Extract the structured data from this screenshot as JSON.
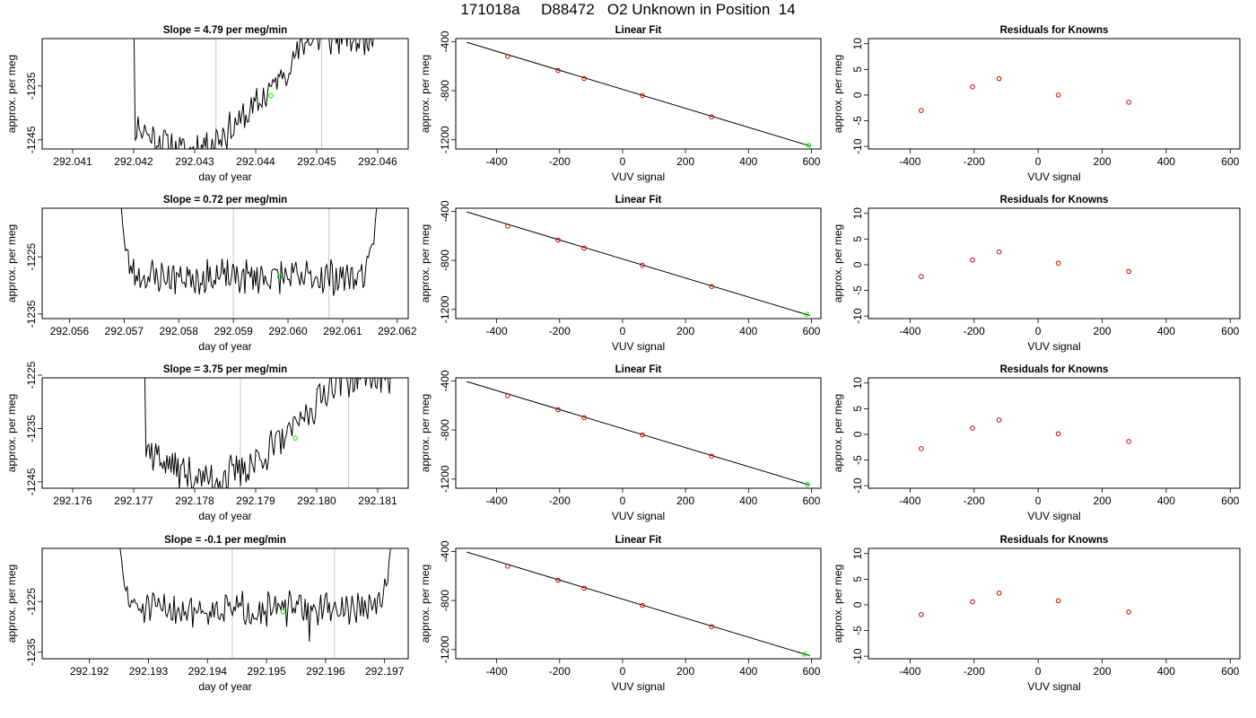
{
  "figure": {
    "title": "171018a     D88472   O2 Unknown in Position  14"
  },
  "chart_data": [
    {
      "type": "line",
      "row": 0,
      "title": "Slope =  4.79  per meg/min",
      "xlabel": "day of year",
      "ylabel": "approx. per meg",
      "xlim": [
        292.0405,
        292.0465
      ],
      "ylim": [
        -1246.7,
        -1226.2
      ],
      "xticks": [
        "292.041",
        "292.042",
        "292.043",
        "292.044",
        "292.045",
        "292.046"
      ],
      "xtick_values": [
        292.041,
        292.042,
        292.043,
        292.044,
        292.045,
        292.046
      ],
      "yticks": [
        "-1245",
        "-1235"
      ],
      "ytick_values": [
        -1245,
        -1235
      ],
      "vlines": [
        292.04335,
        292.04508
      ],
      "marker": {
        "x": 292.04425,
        "y": -1236.8,
        "color": "#00ee00"
      },
      "curve": {
        "x_start": 292.04185,
        "x_end": 292.04605,
        "y_start": -1226.2,
        "y_end": -1226.2,
        "y_min": -1246.7,
        "x_min": 292.04285,
        "noise": 1.8,
        "flat_end": 292.04595,
        "seed": 11
      },
      "line_color": "#000000"
    },
    {
      "type": "scatter+line",
      "row": 0,
      "title": "Linear Fit",
      "xlabel": "VUV signal",
      "ylabel": "approx. per meg",
      "xlim": [
        -530,
        630
      ],
      "ylim": [
        -1275,
        -375
      ],
      "xticks": [
        "-400",
        "-200",
        "0",
        "200",
        "400",
        "600"
      ],
      "xtick_values": [
        -400,
        -200,
        0,
        200,
        400,
        600
      ],
      "yticks": [
        "-400",
        "-800",
        "-1200"
      ],
      "ytick_values": [
        -400,
        -800,
        -1200
      ],
      "fit_line": {
        "x": [
          -495,
          595
        ],
        "y": [
          -405,
          -1250
        ]
      },
      "points": {
        "x": [
          -365,
          -205,
          -122,
          63,
          283
        ],
        "y": [
          -520,
          -635,
          -700,
          -840,
          -1013
        ],
        "color": "#cc0000"
      },
      "unknown_point": {
        "x": 591,
        "y": -1245,
        "color": "#00ee00"
      }
    },
    {
      "type": "scatter",
      "row": 0,
      "title": "Residuals for Knowns",
      "xlabel": "VUV signal",
      "ylabel": "approx. per meg",
      "xlim": [
        -530,
        630
      ],
      "ylim": [
        -10.5,
        11
      ],
      "xticks": [
        "-400",
        "-200",
        "0",
        "200",
        "400",
        "600"
      ],
      "xtick_values": [
        -400,
        -200,
        0,
        200,
        400,
        600
      ],
      "yticks": [
        "-10",
        "-5",
        "0",
        "5",
        "10"
      ],
      "ytick_values": [
        -10,
        -5,
        0,
        5,
        10
      ],
      "points": {
        "x": [
          -365,
          -205,
          -122,
          63,
          283
        ],
        "y": [
          -3.0,
          1.6,
          3.2,
          0.0,
          -1.4
        ],
        "color": "#cc0000"
      }
    },
    {
      "type": "line",
      "row": 1,
      "title": "Slope =  0.72  per meg/min",
      "xlabel": "day of year",
      "ylabel": "approx. per meg",
      "xlim": [
        292.0555,
        292.0622
      ],
      "ylim": [
        -1235.8,
        -1216.5
      ],
      "xticks": [
        "292.056",
        "292.057",
        "292.058",
        "292.059",
        "292.060",
        "292.061",
        "292.062"
      ],
      "xtick_values": [
        292.056,
        292.057,
        292.058,
        292.059,
        292.06,
        292.061,
        292.062
      ],
      "yticks": [
        "-1235",
        "-1225"
      ],
      "ytick_values": [
        -1235,
        -1225
      ],
      "vlines": [
        292.059,
        292.06075
      ],
      "marker": {
        "x": 292.05985,
        "y": -1228.5,
        "color": "#00ee00"
      },
      "curve": {
        "x_start": 292.05695,
        "x_end": 292.06162,
        "y_start": -1216.5,
        "y_end": -1216.5,
        "y_min": -1230.0,
        "x_min": 292.059,
        "noise": 1.6,
        "flat_base": -1228.5,
        "seed": 23
      },
      "line_color": "#000000"
    },
    {
      "type": "scatter+line",
      "row": 1,
      "title": "Linear Fit",
      "xlabel": "VUV signal",
      "ylabel": "approx. per meg",
      "xlim": [
        -530,
        630
      ],
      "ylim": [
        -1275,
        -375
      ],
      "xticks": [
        "-400",
        "-200",
        "0",
        "200",
        "400",
        "600"
      ],
      "xtick_values": [
        -400,
        -200,
        0,
        200,
        400,
        600
      ],
      "yticks": [
        "-400",
        "-800",
        "-1200"
      ],
      "ytick_values": [
        -400,
        -800,
        -1200
      ],
      "fit_line": {
        "x": [
          -495,
          595
        ],
        "y": [
          -405,
          -1250
        ]
      },
      "points": {
        "x": [
          -365,
          -205,
          -122,
          63,
          283
        ],
        "y": [
          -520,
          -635,
          -700,
          -840,
          -1013
        ],
        "color": "#cc0000"
      },
      "unknown_point": {
        "x": 584,
        "y": -1240,
        "color": "#00ee00"
      }
    },
    {
      "type": "scatter",
      "row": 1,
      "title": "Residuals for Knowns",
      "xlabel": "VUV signal",
      "ylabel": "approx. per meg",
      "xlim": [
        -530,
        630
      ],
      "ylim": [
        -10.5,
        11
      ],
      "xticks": [
        "-400",
        "-200",
        "0",
        "200",
        "400",
        "600"
      ],
      "xtick_values": [
        -400,
        -200,
        0,
        200,
        400,
        600
      ],
      "yticks": [
        "-10",
        "-5",
        "0",
        "5",
        "10"
      ],
      "ytick_values": [
        -10,
        -5,
        0,
        5,
        10
      ],
      "points": {
        "x": [
          -365,
          -205,
          -122,
          63,
          283
        ],
        "y": [
          -2.3,
          0.9,
          2.5,
          0.3,
          -1.3
        ],
        "color": "#cc0000"
      }
    },
    {
      "type": "line",
      "row": 2,
      "title": "Slope =  3.75  per meg/min",
      "xlabel": "day of year",
      "ylabel": "approx. per meg",
      "xlim": [
        292.1755,
        292.1815
      ],
      "ylim": [
        -1246.2,
        -1225.5
      ],
      "xticks": [
        "292.176",
        "292.177",
        "292.178",
        "292.179",
        "292.180",
        "292.181"
      ],
      "xtick_values": [
        292.176,
        292.177,
        292.178,
        292.179,
        292.18,
        292.181
      ],
      "yticks": [
        "-1245",
        "-1235",
        "-1225"
      ],
      "ytick_values": [
        -1245,
        -1235,
        -1225
      ],
      "vlines": [
        292.17875,
        292.18052
      ],
      "marker": {
        "x": 292.17965,
        "y": -1236.8,
        "color": "#00ee00"
      },
      "curve": {
        "x_start": 292.17702,
        "x_end": 292.18135,
        "y_start": -1225.5,
        "y_end": -1225.5,
        "y_min": -1244.5,
        "x_min": 292.17825,
        "noise": 2.0,
        "seed": 37
      },
      "line_color": "#000000"
    },
    {
      "type": "scatter+line",
      "row": 2,
      "title": "Linear Fit",
      "xlabel": "VUV signal",
      "ylabel": "approx. per meg",
      "xlim": [
        -530,
        630
      ],
      "ylim": [
        -1275,
        -375
      ],
      "xticks": [
        "-400",
        "-200",
        "0",
        "200",
        "400",
        "600"
      ],
      "xtick_values": [
        -400,
        -200,
        0,
        200,
        400,
        600
      ],
      "yticks": [
        "-400",
        "-800",
        "-1200"
      ],
      "ytick_values": [
        -400,
        -800,
        -1200
      ],
      "fit_line": {
        "x": [
          -495,
          595
        ],
        "y": [
          -405,
          -1250
        ]
      },
      "points": {
        "x": [
          -365,
          -205,
          -122,
          63,
          283
        ],
        "y": [
          -520,
          -635,
          -700,
          -840,
          -1013
        ],
        "color": "#cc0000"
      },
      "unknown_point": {
        "x": 587,
        "y": -1243,
        "color": "#00ee00"
      }
    },
    {
      "type": "scatter",
      "row": 2,
      "title": "Residuals for Knowns",
      "xlabel": "VUV signal",
      "ylabel": "approx. per meg",
      "xlim": [
        -530,
        630
      ],
      "ylim": [
        -10.5,
        11
      ],
      "xticks": [
        "-400",
        "-200",
        "0",
        "200",
        "400",
        "600"
      ],
      "xtick_values": [
        -400,
        -200,
        0,
        200,
        400,
        600
      ],
      "yticks": [
        "-10",
        "-5",
        "0",
        "5",
        "10"
      ],
      "ytick_values": [
        -10,
        -5,
        0,
        5,
        10
      ],
      "points": {
        "x": [
          -365,
          -205,
          -122,
          63,
          283
        ],
        "y": [
          -2.8,
          1.2,
          2.8,
          0.1,
          -1.4
        ],
        "color": "#cc0000"
      }
    },
    {
      "type": "line",
      "row": 3,
      "title": "Slope =  -0.1  per meg/min",
      "xlabel": "day of year",
      "ylabel": "approx. per meg",
      "xlim": [
        292.1912,
        292.1974
      ],
      "ylim": [
        -1236.3,
        -1214.5
      ],
      "xticks": [
        "292.192",
        "292.193",
        "292.194",
        "292.195",
        "292.196",
        "292.197"
      ],
      "xtick_values": [
        292.192,
        292.193,
        292.194,
        292.195,
        292.196,
        292.197
      ],
      "yticks": [
        "-1235",
        "-1225"
      ],
      "ytick_values": [
        -1235,
        -1225
      ],
      "vlines": [
        292.19442,
        292.19615
      ],
      "marker": {
        "x": 292.19528,
        "y": -1227.0,
        "color": "#00ee00"
      },
      "curve": {
        "x_start": 292.19252,
        "x_end": 292.1971,
        "y_start": -1214.5,
        "y_end": -1214.5,
        "y_min": -1230.0,
        "x_min": 292.1944,
        "noise": 1.7,
        "flat_base": -1226.5,
        "seed": 51
      },
      "line_color": "#000000"
    },
    {
      "type": "scatter+line",
      "row": 3,
      "title": "Linear Fit",
      "xlabel": "VUV signal",
      "ylabel": "approx. per meg",
      "xlim": [
        -530,
        630
      ],
      "ylim": [
        -1275,
        -375
      ],
      "xticks": [
        "-400",
        "-200",
        "0",
        "200",
        "400",
        "600"
      ],
      "xtick_values": [
        -400,
        -200,
        0,
        200,
        400,
        600
      ],
      "yticks": [
        "-400",
        "-800",
        "-1200"
      ],
      "ytick_values": [
        -400,
        -800,
        -1200
      ],
      "fit_line": {
        "x": [
          -495,
          595
        ],
        "y": [
          -405,
          -1250
        ]
      },
      "points": {
        "x": [
          -365,
          -205,
          -122,
          63,
          283
        ],
        "y": [
          -520,
          -635,
          -700,
          -840,
          -1013
        ],
        "color": "#cc0000"
      },
      "unknown_point": {
        "x": 578,
        "y": -1237,
        "color": "#00ee00"
      }
    },
    {
      "type": "scatter",
      "row": 3,
      "title": "Residuals for Knowns",
      "xlabel": "VUV signal",
      "ylabel": "approx. per meg",
      "xlim": [
        -530,
        630
      ],
      "ylim": [
        -10.5,
        11
      ],
      "xticks": [
        "-400",
        "-200",
        "0",
        "200",
        "400",
        "600"
      ],
      "xtick_values": [
        -400,
        -200,
        0,
        200,
        400,
        600
      ],
      "yticks": [
        "-10",
        "-5",
        "0",
        "5",
        "10"
      ],
      "ytick_values": [
        -10,
        -5,
        0,
        5,
        10
      ],
      "points": {
        "x": [
          -365,
          -205,
          -122,
          63,
          283
        ],
        "y": [
          -1.9,
          0.6,
          2.3,
          0.8,
          -1.4
        ],
        "color": "#cc0000"
      }
    }
  ]
}
